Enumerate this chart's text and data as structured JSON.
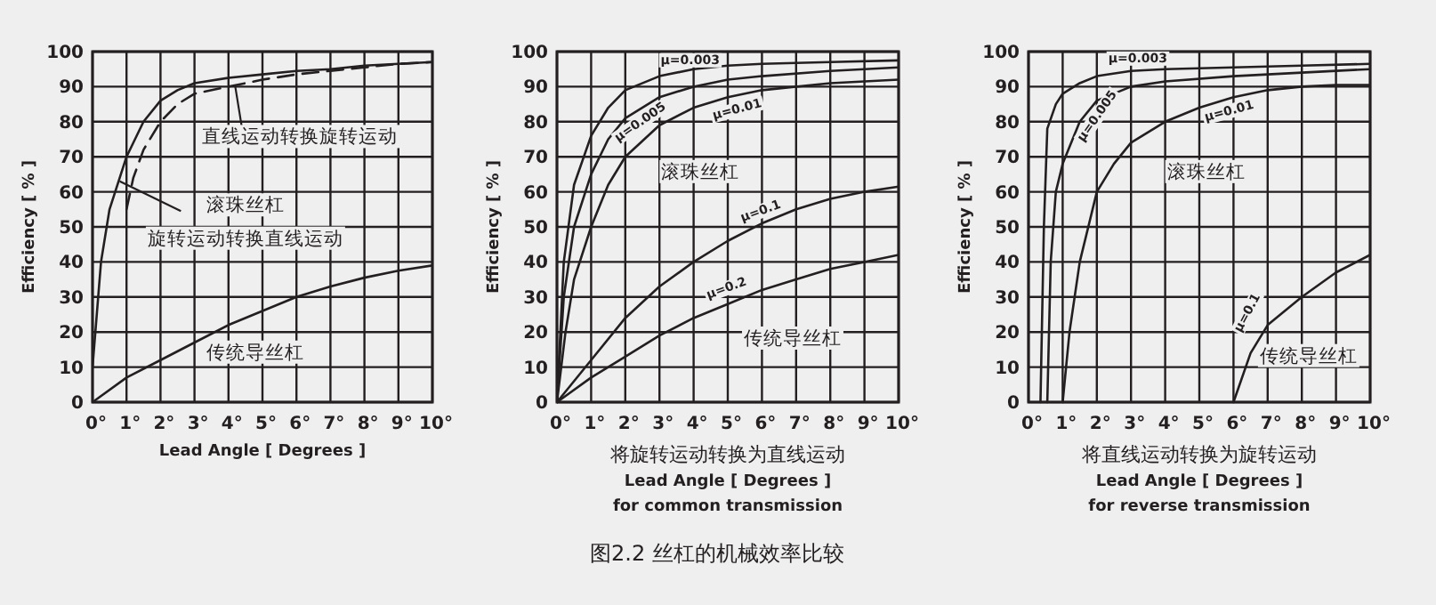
{
  "chart_data": [
    {
      "type": "line",
      "ylabel": "Efficiency [ % ]",
      "xlabel": "Lead Angle [ Degrees ]",
      "xlim": [
        0,
        10
      ],
      "ylim": [
        0,
        100
      ],
      "xticks": [
        {
          "value": 0,
          "label": "0°"
        },
        {
          "value": 1,
          "label": "1°"
        },
        {
          "value": 2,
          "label": "2°"
        },
        {
          "value": 3,
          "label": "3°"
        },
        {
          "value": 4,
          "label": "4°"
        },
        {
          "value": 5,
          "label": "5°"
        },
        {
          "value": 6,
          "label": "6°"
        },
        {
          "value": 7,
          "label": "7°"
        },
        {
          "value": 8,
          "label": "8°"
        },
        {
          "value": 9,
          "label": "9°"
        },
        {
          "value": 10,
          "label": "10°"
        }
      ],
      "yticks": [
        0,
        10,
        20,
        30,
        40,
        50,
        60,
        70,
        80,
        90,
        100
      ],
      "grid": true,
      "legend": false,
      "marker": "none",
      "series": [
        {
          "color": "#231f20",
          "line_style": "solid",
          "x": [
            0,
            0.25,
            0.5,
            1,
            1.5,
            2,
            2.5,
            3,
            4,
            5,
            6,
            7,
            8,
            9,
            10
          ],
          "values": [
            10,
            40,
            55,
            70,
            80,
            86,
            89,
            91,
            92.5,
            93.5,
            94.5,
            95,
            96,
            96.5,
            97
          ]
        },
        {
          "color": "#231f20",
          "line_style": "dashed",
          "x": [
            1,
            1.2,
            1.5,
            2,
            2.5,
            3,
            4,
            5,
            6,
            7,
            8,
            9,
            10
          ],
          "values": [
            55,
            64,
            72,
            80,
            85,
            88,
            90,
            92,
            93.5,
            94.5,
            95.5,
            96.5,
            97
          ]
        },
        {
          "color": "#231f20",
          "line_style": "solid",
          "x": [
            0,
            1,
            2,
            3,
            4,
            5,
            6,
            7,
            8,
            9,
            10
          ],
          "values": [
            0,
            7,
            12,
            17,
            22,
            26,
            30,
            33,
            35.5,
            37.5,
            39
          ]
        }
      ],
      "annotations": [
        {
          "text": "直线运动转换旋转运动",
          "x": 4.2,
          "y": 90
        },
        "滚珠丝杠",
        {
          "text": "旋转运动转换直线运动",
          "x": 0.8,
          "y": 63
        },
        "传统导丝杠"
      ]
    },
    {
      "type": "line",
      "ylabel": "Efficiency [ % ]",
      "xlabel": "将旋转运动转换为直线运动\nLead Angle [ Degrees ]\nfor common transmission",
      "xlim": [
        0,
        10
      ],
      "ylim": [
        0,
        100
      ],
      "xticks": [
        {
          "value": 0,
          "label": "0°"
        },
        {
          "value": 1,
          "label": "1°"
        },
        {
          "value": 2,
          "label": "2°"
        },
        {
          "value": 3,
          "label": "3°"
        },
        {
          "value": 4,
          "label": "4°"
        },
        {
          "value": 5,
          "label": "5°"
        },
        {
          "value": 6,
          "label": "6°"
        },
        {
          "value": 7,
          "label": "7°"
        },
        {
          "value": 8,
          "label": "8°"
        },
        {
          "value": 9,
          "label": "9°"
        },
        {
          "value": 10,
          "label": "10°"
        }
      ],
      "yticks": [
        0,
        10,
        20,
        30,
        40,
        50,
        60,
        70,
        80,
        90,
        100
      ],
      "grid": true,
      "legend": false,
      "marker": "none",
      "series": [
        {
          "name": "μ=0.003",
          "color": "#231f20",
          "x": [
            0,
            0.2,
            0.5,
            1,
            1.5,
            2,
            3,
            4,
            5,
            6,
            8,
            10
          ],
          "values": [
            0,
            40,
            62,
            76,
            84,
            89,
            93,
            95,
            96,
            96.5,
            97,
            97.5
          ]
        },
        {
          "name": "μ=0.005",
          "color": "#231f20",
          "x": [
            0,
            0.2,
            0.5,
            1,
            1.5,
            2,
            3,
            4,
            5,
            6,
            8,
            10
          ],
          "values": [
            0,
            30,
            50,
            65,
            75,
            81,
            87,
            90,
            92,
            93,
            94.5,
            95.5
          ]
        },
        {
          "name": "μ=0.01",
          "color": "#231f20",
          "x": [
            0,
            0.25,
            0.5,
            1,
            1.5,
            2,
            3,
            4,
            5,
            6,
            8,
            10
          ],
          "values": [
            0,
            20,
            35,
            50,
            62,
            70,
            79,
            84,
            87,
            89,
            91,
            92
          ]
        },
        {
          "name": "μ=0.1",
          "color": "#231f20",
          "x": [
            0,
            1,
            2,
            3,
            4,
            5,
            6,
            7,
            8,
            9,
            10
          ],
          "values": [
            0,
            12,
            24,
            33,
            40,
            46,
            51,
            55,
            58,
            60,
            61.5
          ]
        },
        {
          "name": "μ=0.2",
          "color": "#231f20",
          "x": [
            0,
            1,
            2,
            3,
            4,
            5,
            6,
            7,
            8,
            9,
            10
          ],
          "values": [
            0,
            7,
            13,
            19,
            24,
            28,
            32,
            35,
            38,
            40,
            42
          ]
        }
      ],
      "annotations": [
        "滚珠丝杠",
        "传统导丝杠",
        "图2.2 丝杠的机械效率比较"
      ]
    },
    {
      "type": "line",
      "ylabel": "Efficiency [ % ]",
      "xlabel": "将直线运动转换为旋转运动\nLead Angle [ Degrees ]\nfor reverse transmission",
      "xlim": [
        0,
        10
      ],
      "ylim": [
        0,
        100
      ],
      "xticks": [
        {
          "value": 0,
          "label": "0°"
        },
        {
          "value": 1,
          "label": "1°"
        },
        {
          "value": 2,
          "label": "2°"
        },
        {
          "value": 3,
          "label": "3°"
        },
        {
          "value": 4,
          "label": "4°"
        },
        {
          "value": 5,
          "label": "5°"
        },
        {
          "value": 6,
          "label": "6°"
        },
        {
          "value": 7,
          "label": "7°"
        },
        {
          "value": 8,
          "label": "8°"
        },
        {
          "value": 9,
          "label": "9°"
        },
        {
          "value": 10,
          "label": "10°"
        }
      ],
      "yticks": [
        0,
        10,
        20,
        30,
        40,
        50,
        60,
        70,
        80,
        90,
        100
      ],
      "grid": true,
      "legend": false,
      "marker": "none",
      "series": [
        {
          "name": "μ=0.003",
          "color": "#231f20",
          "x": [
            0.35,
            0.45,
            0.55,
            0.8,
            1,
            1.5,
            2,
            3,
            4,
            6,
            8,
            10
          ],
          "values": [
            0,
            50,
            78,
            85,
            88,
            91,
            93,
            94.5,
            95,
            95.5,
            96,
            96.5
          ]
        },
        {
          "name": "μ=0.005",
          "color": "#231f20",
          "x": [
            0.55,
            0.65,
            0.8,
            1,
            1.5,
            2,
            3,
            4,
            6,
            8,
            10
          ],
          "values": [
            0,
            40,
            60,
            68,
            80,
            86,
            90,
            91.5,
            93,
            94,
            95
          ]
        },
        {
          "name": "μ=0.01",
          "color": "#231f20",
          "x": [
            1,
            1.2,
            1.5,
            2,
            2.5,
            3,
            4,
            5,
            6,
            7,
            8,
            9,
            10
          ],
          "values": [
            0,
            20,
            40,
            60,
            68,
            74,
            80,
            84,
            87,
            89,
            90,
            90.5,
            90.5
          ]
        },
        {
          "name": "μ=0.1",
          "color": "#231f20",
          "x": [
            6,
            6.5,
            7,
            7.5,
            8,
            9,
            10
          ],
          "values": [
            0,
            14,
            22,
            26,
            30,
            37,
            42
          ]
        }
      ],
      "annotations": [
        "滚珠丝杠",
        "传统导丝杠"
      ]
    }
  ]
}
